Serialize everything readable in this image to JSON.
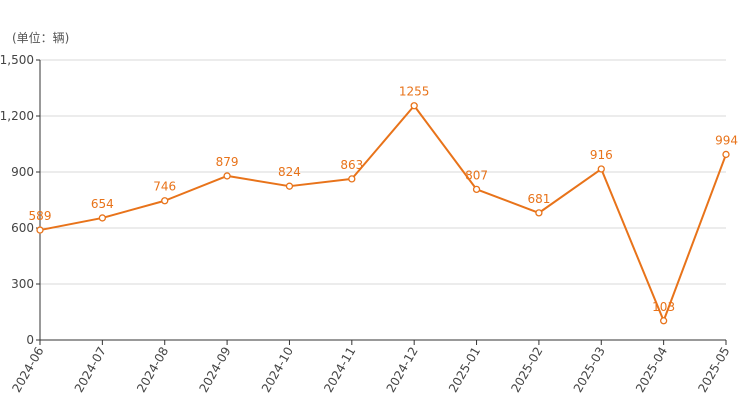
{
  "chart_data": {
    "type": "line",
    "unit_label": "(单位：辆)",
    "categories": [
      "2024-06",
      "2024-07",
      "2024-08",
      "2024-09",
      "2024-10",
      "2024-11",
      "2024-12",
      "2025-01",
      "2025-02",
      "2025-03",
      "2025-04",
      "2025-05"
    ],
    "series": [
      {
        "values": [
          589,
          654,
          746,
          879,
          824,
          863,
          1255,
          807,
          681,
          916,
          103,
          994
        ],
        "color": "#e8731a"
      }
    ],
    "data_labels": [
      "589",
      "654",
      "746",
      "879",
      "824",
      "863",
      "1255",
      "807",
      "681",
      "916",
      "103",
      "994"
    ],
    "y_ticks": [
      0,
      300,
      600,
      900,
      1200,
      1500
    ],
    "y_tick_labels": [
      "0",
      "300",
      "600",
      "900",
      "1,200",
      "1,500"
    ],
    "ylim": [
      0,
      1500
    ],
    "grid": true,
    "legend": "none"
  }
}
